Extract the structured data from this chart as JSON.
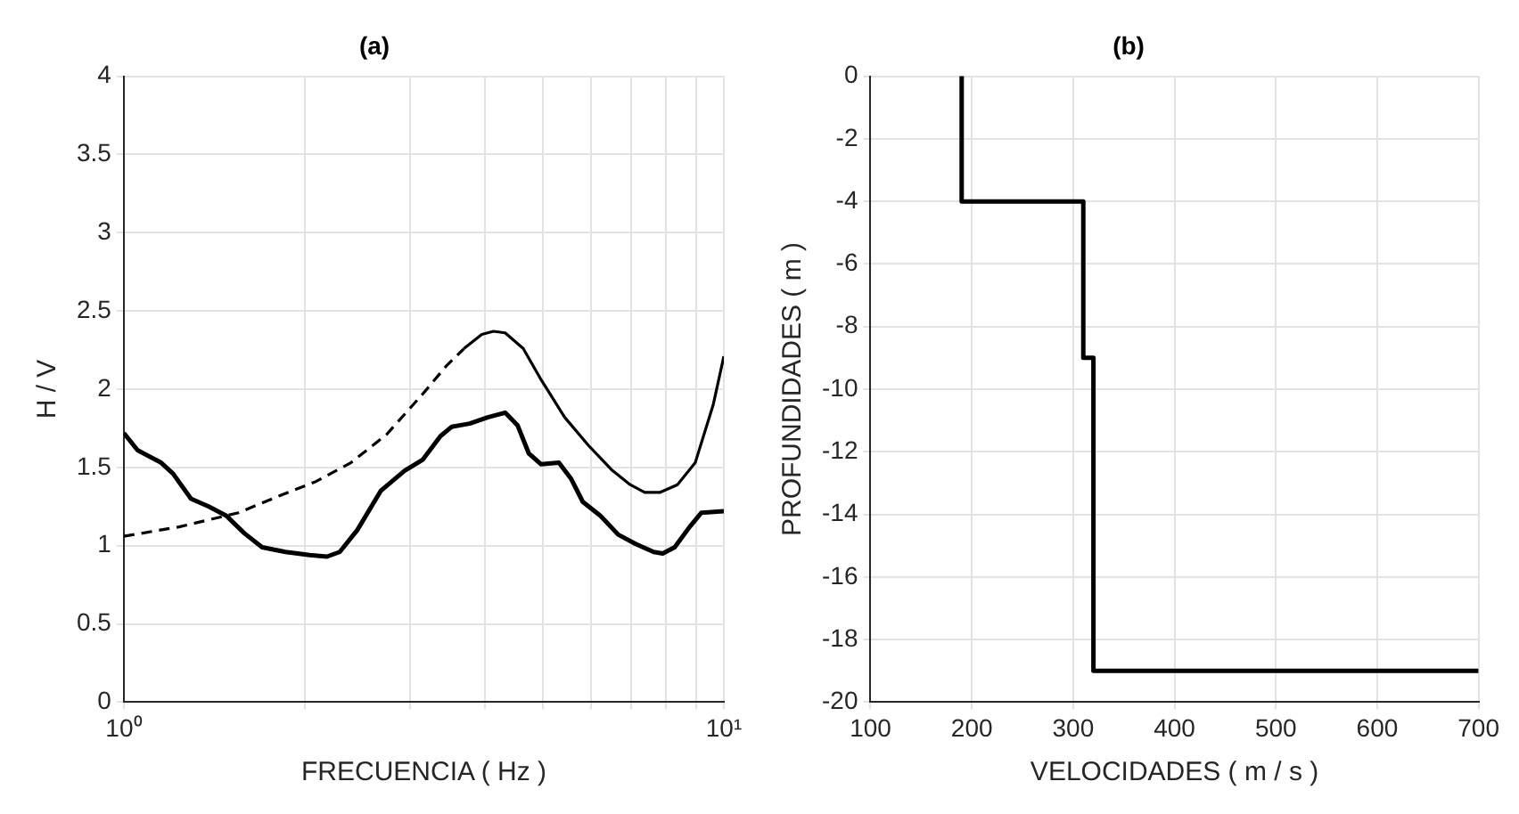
{
  "chart_data": [
    {
      "type": "line",
      "title": "(a)",
      "xlabel": "FRECUENCIA ( Hz )",
      "ylabel": "H / V",
      "log": "x",
      "grid": true,
      "xlim": [
        1,
        10
      ],
      "xticks": [
        {
          "value": 1,
          "label": "10⁰"
        },
        {
          "value": 2,
          "label": null
        },
        {
          "value": 3,
          "label": null
        },
        {
          "value": 4,
          "label": null
        },
        {
          "value": 5,
          "label": null
        },
        {
          "value": 6,
          "label": null
        },
        {
          "value": 7,
          "label": null
        },
        {
          "value": 8,
          "label": null
        },
        {
          "value": 9,
          "label": null
        },
        {
          "value": 10,
          "label": "10¹"
        }
      ],
      "ylim": [
        0,
        4
      ],
      "yticks": [
        0,
        0.5,
        1,
        1.5,
        2,
        2.5,
        3,
        3.5,
        4
      ],
      "series": [
        {
          "color": "#000000",
          "line_style": "solid",
          "x": [
            1,
            1.054,
            1.154,
            1.208,
            1.294,
            1.385,
            1.483,
            1.587,
            1.7,
            1.86,
            2.04,
            2.18,
            2.29,
            2.45,
            2.68,
            2.94,
            3.15,
            3.37,
            3.52,
            3.77,
            4.04,
            4.32,
            4.53,
            4.73,
            4.96,
            5.31,
            5.56,
            5.82,
            6.23,
            6.67,
            7.14,
            7.64,
            7.91,
            8.28,
            8.77,
            9.17,
            10
          ],
          "values": [
            1.72,
            1.61,
            1.53,
            1.46,
            1.3,
            1.25,
            1.19,
            1.08,
            0.99,
            0.96,
            0.94,
            0.93,
            0.96,
            1.1,
            1.35,
            1.48,
            1.55,
            1.7,
            1.76,
            1.78,
            1.82,
            1.85,
            1.77,
            1.59,
            1.52,
            1.53,
            1.43,
            1.28,
            1.19,
            1.07,
            1.01,
            0.96,
            0.95,
            0.99,
            1.12,
            1.21,
            1.22
          ]
        },
        {
          "color": "#000000",
          "line_style": "dashed",
          "x": [
            1,
            1.236,
            1.552,
            1.82,
            2.09,
            2.39,
            2.74,
            3.15,
            3.45,
            3.69
          ],
          "values": [
            1.06,
            1.12,
            1.21,
            1.32,
            1.41,
            1.53,
            1.71,
            1.97,
            2.15,
            2.26
          ]
        },
        {
          "color": "#000000",
          "line_style": "solid",
          "x": [
            3.69,
            3.95,
            4.13,
            4.32,
            4.63,
            4.96,
            5.43,
            5.95,
            6.52,
            6.98,
            7.38,
            7.82,
            8.37,
            8.96,
            9.6,
            10
          ],
          "values": [
            2.26,
            2.35,
            2.37,
            2.36,
            2.26,
            2.06,
            1.82,
            1.64,
            1.48,
            1.39,
            1.34,
            1.34,
            1.39,
            1.53,
            1.9,
            2.21
          ]
        }
      ]
    },
    {
      "type": "line",
      "title": "(b)",
      "xlabel": "VELOCIDADES ( m / s )",
      "ylabel": "PROFUNDIDADES ( m )",
      "grid": true,
      "xlim": [
        100,
        700
      ],
      "xticks": [
        100,
        200,
        300,
        400,
        500,
        600,
        700
      ],
      "ylim": [
        -20,
        0
      ],
      "yticks": [
        0,
        -2,
        -4,
        -6,
        -8,
        -10,
        -12,
        -14,
        -16,
        -18,
        -20
      ],
      "series": [
        {
          "color": "#000000",
          "line_style": "solid",
          "x": [
            190,
            190,
            310,
            310,
            320,
            320,
            700
          ],
          "values": [
            0,
            -4,
            -4,
            -9,
            -9,
            -19,
            -19
          ]
        }
      ]
    }
  ]
}
